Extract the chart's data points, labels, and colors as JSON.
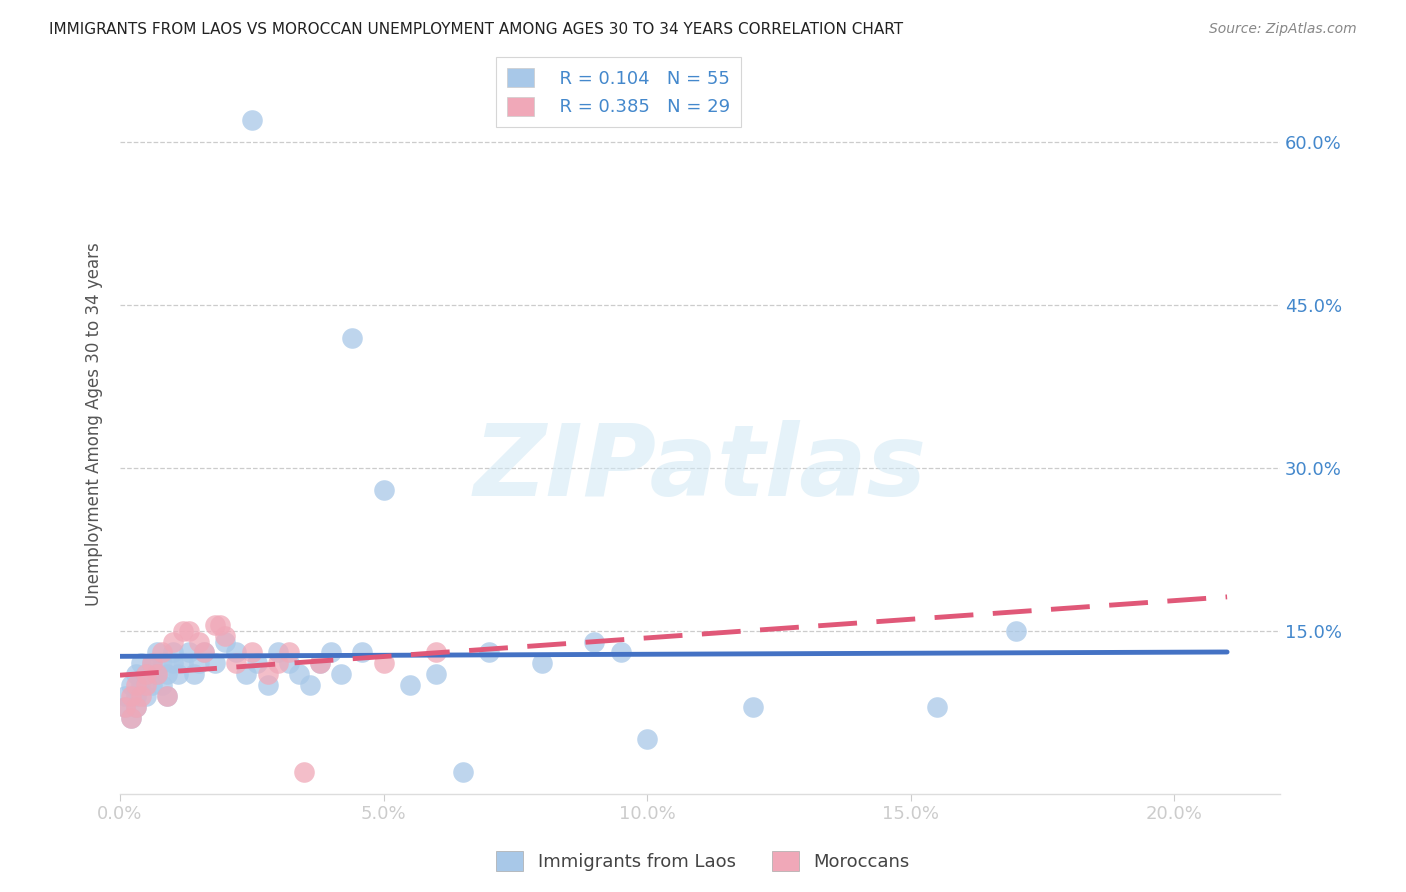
{
  "title": "IMMIGRANTS FROM LAOS VS MOROCCAN UNEMPLOYMENT AMONG AGES 30 TO 34 YEARS CORRELATION CHART",
  "source": "Source: ZipAtlas.com",
  "ylabel": "Unemployment Among Ages 30 to 34 years",
  "x_tick_labels": [
    "0.0%",
    "5.0%",
    "10.0%",
    "15.0%",
    "20.0%"
  ],
  "x_tick_values": [
    0.0,
    0.05,
    0.1,
    0.15,
    0.2
  ],
  "y_tick_labels": [
    "15.0%",
    "30.0%",
    "45.0%",
    "60.0%"
  ],
  "y_tick_values": [
    0.15,
    0.3,
    0.45,
    0.6
  ],
  "xlim": [
    0.0,
    0.22
  ],
  "ylim": [
    0.0,
    0.68
  ],
  "legend_label1": "Immigrants from Laos",
  "legend_label2": "Moroccans",
  "legend_R1": "R = 0.104",
  "legend_N1": "N = 55",
  "legend_R2": "R = 0.385",
  "legend_N2": "N = 29",
  "color_blue": "#a8c8e8",
  "color_pink": "#f0a8b8",
  "line_color_blue": "#4472c4",
  "line_color_pink": "#e05878",
  "watermark": "ZIPatlas",
  "blue_x": [
    0.001,
    0.001,
    0.002,
    0.002,
    0.003,
    0.003,
    0.003,
    0.004,
    0.004,
    0.005,
    0.005,
    0.006,
    0.006,
    0.007,
    0.007,
    0.008,
    0.008,
    0.009,
    0.009,
    0.01,
    0.01,
    0.011,
    0.012,
    0.013,
    0.014,
    0.015,
    0.016,
    0.018,
    0.02,
    0.022,
    0.024,
    0.025,
    0.026,
    0.028,
    0.03,
    0.032,
    0.034,
    0.036,
    0.038,
    0.04,
    0.042,
    0.044,
    0.046,
    0.05,
    0.055,
    0.06,
    0.065,
    0.07,
    0.08,
    0.09,
    0.095,
    0.1,
    0.12,
    0.155,
    0.17
  ],
  "blue_y": [
    0.08,
    0.09,
    0.1,
    0.07,
    0.11,
    0.09,
    0.08,
    0.1,
    0.12,
    0.09,
    0.11,
    0.1,
    0.12,
    0.11,
    0.13,
    0.1,
    0.12,
    0.11,
    0.09,
    0.12,
    0.13,
    0.11,
    0.12,
    0.13,
    0.11,
    0.12,
    0.13,
    0.12,
    0.14,
    0.13,
    0.11,
    0.62,
    0.12,
    0.1,
    0.13,
    0.12,
    0.11,
    0.1,
    0.12,
    0.13,
    0.11,
    0.42,
    0.13,
    0.28,
    0.1,
    0.11,
    0.02,
    0.13,
    0.12,
    0.14,
    0.13,
    0.05,
    0.08,
    0.08,
    0.15
  ],
  "pink_x": [
    0.001,
    0.002,
    0.002,
    0.003,
    0.003,
    0.004,
    0.005,
    0.005,
    0.006,
    0.007,
    0.008,
    0.009,
    0.01,
    0.012,
    0.013,
    0.015,
    0.016,
    0.018,
    0.019,
    0.02,
    0.022,
    0.025,
    0.028,
    0.03,
    0.032,
    0.035,
    0.038,
    0.05,
    0.06
  ],
  "pink_y": [
    0.08,
    0.07,
    0.09,
    0.1,
    0.08,
    0.09,
    0.11,
    0.1,
    0.12,
    0.11,
    0.13,
    0.09,
    0.14,
    0.15,
    0.15,
    0.14,
    0.13,
    0.155,
    0.155,
    0.145,
    0.12,
    0.13,
    0.11,
    0.12,
    0.13,
    0.02,
    0.12,
    0.12,
    0.13
  ]
}
